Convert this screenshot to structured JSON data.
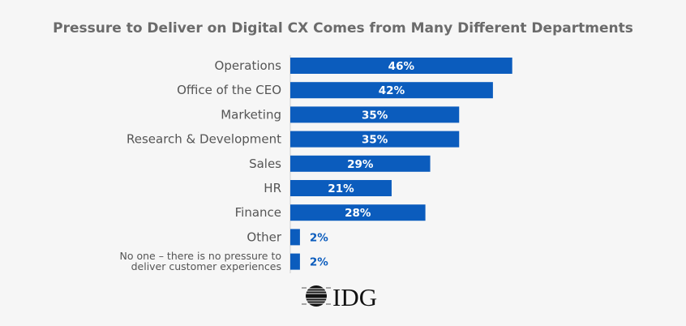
{
  "chart_data": {
    "type": "bar",
    "orientation": "horizontal",
    "title": "Pressure to Deliver on Digital CX Comes from Many Different Departments",
    "categories": [
      "Operations",
      "Office of the CEO",
      "Marketing",
      "Research & Development",
      "Sales",
      "HR",
      "Finance",
      "Other",
      [
        "No one – there is no pressure to",
        "deliver customer experiences"
      ]
    ],
    "values": [
      46,
      42,
      35,
      35,
      29,
      21,
      28,
      2,
      2
    ],
    "value_labels": [
      "46%",
      "42%",
      "35%",
      "35%",
      "29%",
      "21%",
      "28%",
      "2%",
      "2%"
    ],
    "xlim": [
      0,
      50
    ],
    "grid": false,
    "bar_color": "#0b5cbd",
    "label_inside_color": "#ffffff",
    "label_outside_color": "#0b5cbd"
  },
  "logo": {
    "text": "IDG"
  }
}
